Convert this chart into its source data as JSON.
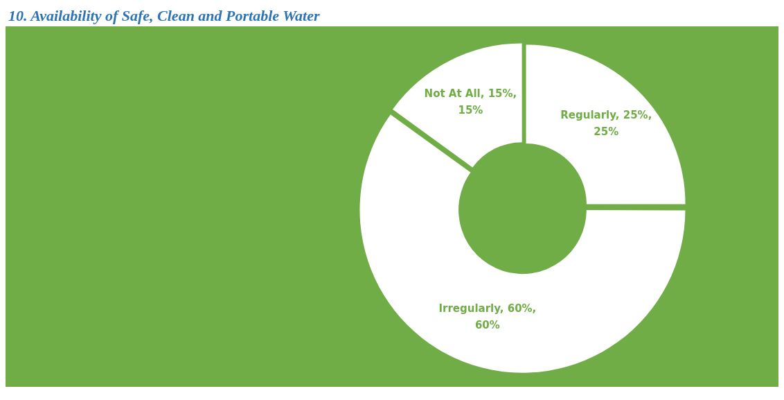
{
  "chart_data": {
    "type": "donut",
    "title": "10. Availability of Safe, Clean and Portable Water",
    "categories": [
      "Regularly",
      "Irregularly",
      "Not At All"
    ],
    "values": [
      25,
      60,
      15
    ],
    "colors": [
      "#ffffff",
      "#ffffff",
      "#ffffff"
    ],
    "value_labels": [
      "25%, 25%",
      "60%, 60%",
      "15%, 15%"
    ]
  }
}
